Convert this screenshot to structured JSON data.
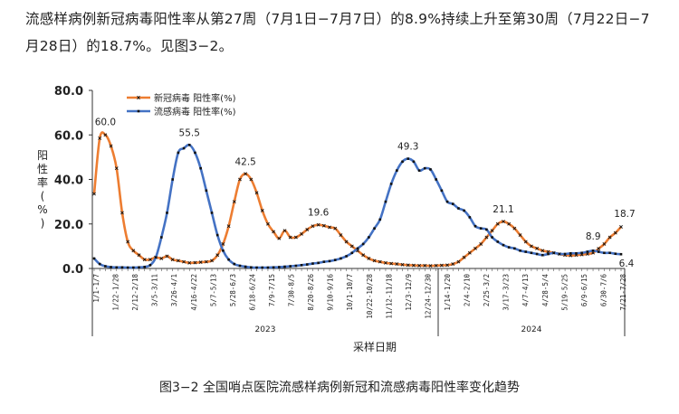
{
  "paragraph": {
    "line1": "流感样病例新冠病毒阳性率从第27周（7月1日−7月7日）的8.9%持续上升至第30周（7月22日−7",
    "line2": "月28日）的18.7%。见图3−2。"
  },
  "caption": "图3−2 全国哨点医院流感样病例新冠和流感病毒阳性率变化趋势",
  "chart_data": {
    "type": "line",
    "title": "",
    "xlabel": "采样日期",
    "ylabel": "阳性率（%）",
    "ylim": [
      0,
      80
    ],
    "yticks": [
      "0.0",
      "20.0",
      "40.0",
      "60.0",
      "80.0"
    ],
    "grid": false,
    "legend": "top-left",
    "year_labels": [
      "2023",
      "2024"
    ],
    "x_tick_labels": [
      "1/1-1/7",
      "1/22-1/28",
      "2/12-2/18",
      "3/5-3/11",
      "3/26-4/1",
      "4/16-4/22",
      "5/7-5/13",
      "5/28-6/3",
      "6/18-6/24",
      "7/9-7/15",
      "7/30-8/5",
      "8/20-8/26",
      "9/10-9/16",
      "10/1-10/7",
      "10/22-10/28",
      "11/12-11/18",
      "12/3-12/9",
      "12/24-12/30",
      "1/14-1/20",
      "2/4-2/10",
      "2/25-3/2",
      "3/17-3/23",
      "4/7-4/13",
      "4/28-5/4",
      "5/19-5/25",
      "6/9-6/15",
      "6/30-7/6",
      "7/21-7/28"
    ],
    "series": [
      {
        "name": "新冠病毒 阳性率(%)",
        "color": "#ED7D31",
        "values": [
          33.5,
          58.5,
          60.0,
          55.0,
          45.0,
          25.0,
          12.0,
          8.0,
          6.0,
          4.0,
          4.0,
          5.0,
          4.5,
          5.5,
          4.0,
          3.5,
          3.0,
          2.5,
          2.6,
          2.8,
          3.0,
          3.5,
          6.0,
          11.0,
          19.0,
          30.0,
          40.0,
          42.5,
          40.0,
          34.0,
          26.0,
          20.0,
          16.5,
          13.5,
          17.0,
          14.0,
          14.0,
          15.5,
          17.5,
          19.0,
          19.6,
          19.2,
          18.5,
          18.0,
          15.0,
          12.0,
          10.0,
          8.0,
          6.0,
          4.5,
          3.5,
          3.0,
          2.5,
          2.2,
          2.0,
          1.7,
          1.5,
          1.4,
          1.3,
          1.3,
          1.2,
          1.3,
          1.4,
          1.5,
          2.0,
          3.0,
          5.0,
          7.0,
          9.0,
          11.0,
          14.0,
          17.0,
          20.0,
          21.1,
          20.0,
          18.0,
          15.0,
          12.0,
          10.0,
          9.0,
          8.0,
          7.5,
          7.0,
          6.5,
          6.0,
          5.8,
          6.0,
          6.2,
          6.5,
          7.0,
          8.9,
          11.0,
          14.0,
          16.0,
          18.7
        ]
      },
      {
        "name": "流感病毒 阳性率(%)",
        "color": "#4472C4",
        "values": [
          4.5,
          2.0,
          1.0,
          0.6,
          0.5,
          0.5,
          0.4,
          0.4,
          0.5,
          0.7,
          1.5,
          5.0,
          14.0,
          25.0,
          40.0,
          52.0,
          54.0,
          55.5,
          52.0,
          45.0,
          35.0,
          25.0,
          15.0,
          8.0,
          4.0,
          2.0,
          1.2,
          0.8,
          0.5,
          0.4,
          0.4,
          0.4,
          0.5,
          0.6,
          0.8,
          1.0,
          1.2,
          1.5,
          1.8,
          2.2,
          2.5,
          3.0,
          3.3,
          3.8,
          4.5,
          5.5,
          7.0,
          9.0,
          11.0,
          14.0,
          18.0,
          22.0,
          30.0,
          38.0,
          44.0,
          48.0,
          49.3,
          48.0,
          44.0,
          45.0,
          44.5,
          40.0,
          35.0,
          30.0,
          29.0,
          27.0,
          26.0,
          23.0,
          19.0,
          18.0,
          17.5,
          14.0,
          12.0,
          10.5,
          9.5,
          9.0,
          8.0,
          7.5,
          7.0,
          6.5,
          6.0,
          6.5,
          7.0,
          6.5,
          6.5,
          6.8,
          6.8,
          7.0,
          7.5,
          8.0,
          7.5,
          7.0,
          7.0,
          6.6,
          6.4
        ]
      }
    ],
    "annotations": [
      {
        "label": "60.0",
        "series": 0,
        "index": 2
      },
      {
        "label": "55.5",
        "series": 1,
        "index": 17
      },
      {
        "label": "42.5",
        "series": 0,
        "index": 27
      },
      {
        "label": "19.6",
        "series": 0,
        "index": 40
      },
      {
        "label": "49.3",
        "series": 1,
        "index": 56
      },
      {
        "label": "21.1",
        "series": 0,
        "index": 73
      },
      {
        "label": "8.9",
        "series": 0,
        "index": 90
      },
      {
        "label": "18.7",
        "series": 0,
        "index": 94
      },
      {
        "label": "6.4",
        "series": 1,
        "index": 94
      }
    ]
  }
}
